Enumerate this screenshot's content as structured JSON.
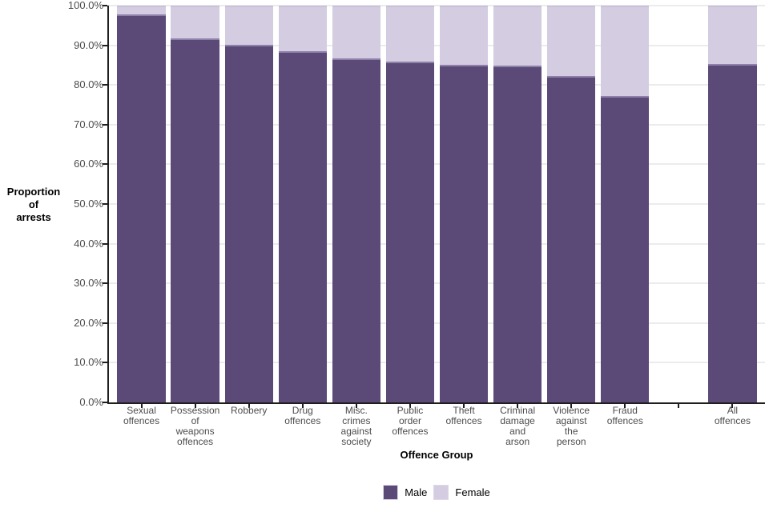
{
  "chart_data": {
    "type": "bar",
    "stacked": true,
    "title": "",
    "xlabel": "Offence Group",
    "ylabel": "Proportion of arrests",
    "ylabel_lines": [
      "Proportion",
      "of",
      "arrests"
    ],
    "categories": [
      "Sexual offences",
      "Possession of weapons offences",
      "Robbery",
      "Drug offences",
      "Misc. crimes against society",
      "Public order offences",
      "Theft offences",
      "Criminal damage and arson",
      "Violence against the person",
      "Fraud offences",
      "All offences"
    ],
    "category_label_lines": [
      [
        "Sexual",
        "offences"
      ],
      [
        "Possession",
        "of",
        "weapons",
        "offences"
      ],
      [
        "Robbery"
      ],
      [
        "Drug",
        "offences"
      ],
      [
        "Misc.",
        "crimes",
        "against",
        "society"
      ],
      [
        "Public",
        "order",
        "offences"
      ],
      [
        "Theft",
        "offences"
      ],
      [
        "Criminal",
        "damage",
        "and",
        "arson"
      ],
      [
        "Violence",
        "against",
        "the",
        "person"
      ],
      [
        "Fraud",
        "offences"
      ],
      [
        "All",
        "offences"
      ]
    ],
    "series": [
      {
        "name": "Male",
        "color": "#5b4a77",
        "values": [
          97.8,
          91.8,
          90.2,
          88.5,
          86.6,
          85.8,
          85.1,
          84.8,
          82.2,
          77.3,
          85.3
        ]
      },
      {
        "name": "Female",
        "color": "#d4cde1",
        "values": [
          2.2,
          8.2,
          9.8,
          11.5,
          13.4,
          14.2,
          14.9,
          15.2,
          17.8,
          22.7,
          14.7
        ]
      }
    ],
    "ylim": [
      0,
      100
    ],
    "ytick_labels": [
      "0.0%",
      "10.0%",
      "20.0%",
      "30.0%",
      "40.0%",
      "50.0%",
      "60.0%",
      "70.0%",
      "80.0%",
      "90.0%",
      "100.0%"
    ],
    "grid": "horizontal-major-only",
    "legend_position": "bottom-center",
    "gap_before_last_category": true
  },
  "colors": {
    "male": "#5b4a77",
    "female": "#d4cde1",
    "gridline": "#ebebeb",
    "axis_line": "#1f1f1f",
    "tick_label": "#4d4d4d",
    "axis_title": "#000000",
    "background": "#ffffff"
  }
}
